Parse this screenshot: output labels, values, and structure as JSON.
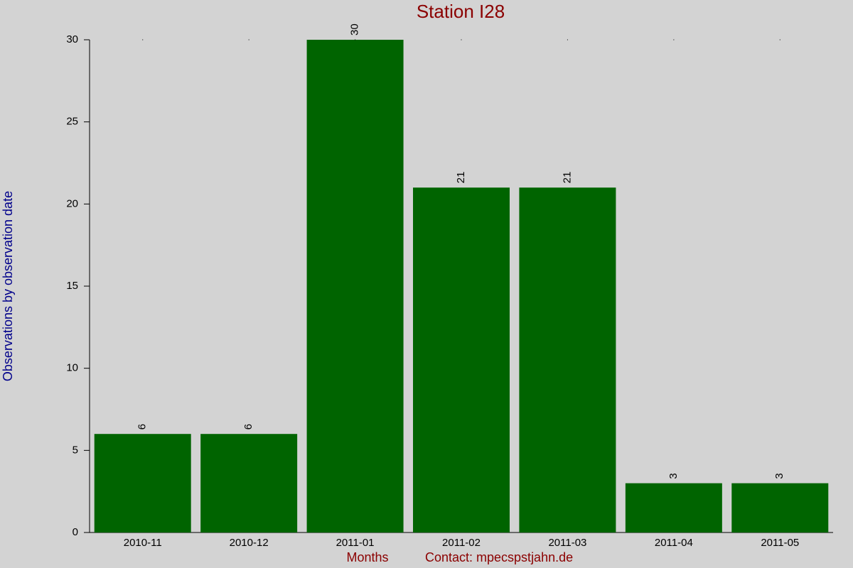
{
  "chart_data": {
    "type": "bar",
    "title": "Station I28",
    "y_label": "Observations by observation date",
    "x_label": "Months",
    "contact": "Contact: mpecspstjahn.de",
    "categories": [
      "2010-11",
      "2010-12",
      "2011-01",
      "2011-02",
      "2011-03",
      "2011-04",
      "2011-05"
    ],
    "values": [
      6,
      6,
      30,
      21,
      21,
      3,
      3
    ],
    "color": "#006400",
    "ylim": [
      0,
      30
    ],
    "yticks": [
      0,
      5,
      10,
      15,
      20,
      25,
      30
    ]
  }
}
